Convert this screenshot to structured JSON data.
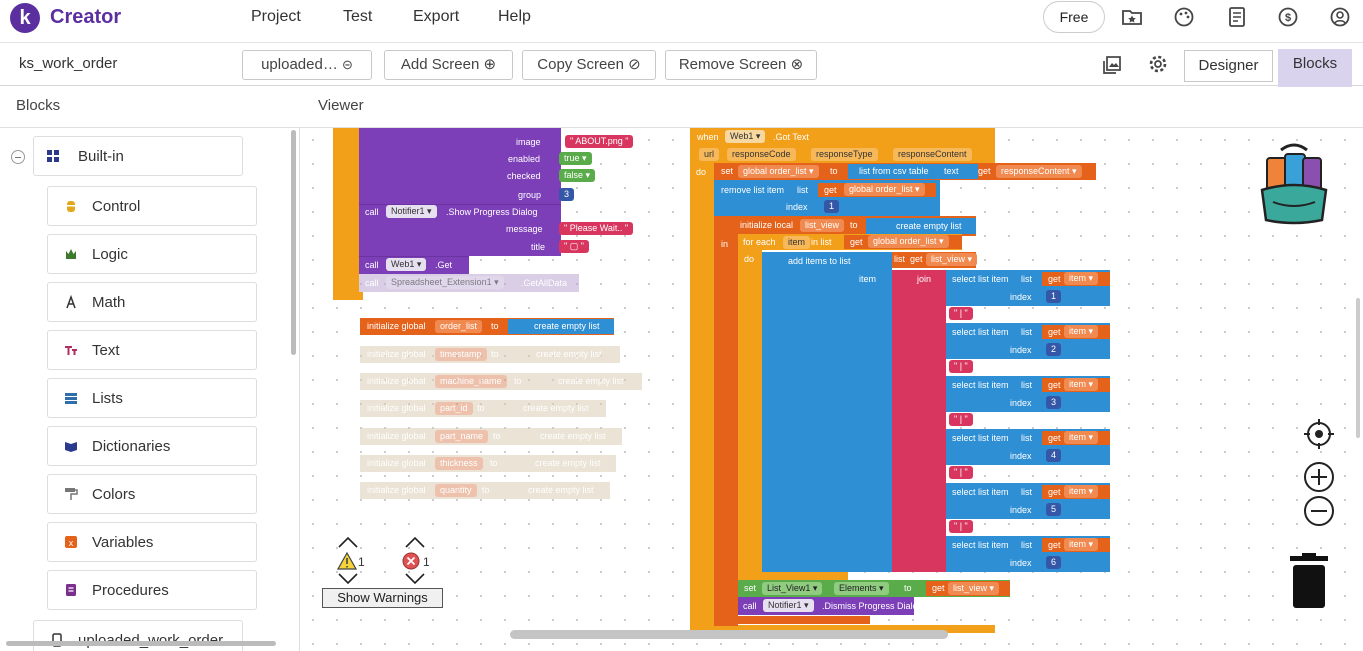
{
  "app": {
    "logo_letter": "k",
    "name": "Creator"
  },
  "menu": [
    "Project",
    "Test",
    "Export",
    "Help"
  ],
  "plan_badge": "Free",
  "project_name": "ks_work_order",
  "screen_bar": {
    "screen_select": "uploaded…",
    "add_screen": "Add Screen",
    "copy_screen": "Copy Screen",
    "remove_screen": "Remove Screen",
    "designer_tab": "Designer",
    "blocks_tab": "Blocks"
  },
  "panels": {
    "blocks_title": "Blocks",
    "viewer_title": "Viewer"
  },
  "builtin": {
    "label": "Built-in",
    "items": [
      {
        "label": "Control",
        "color": "#e1a91a"
      },
      {
        "label": "Logic",
        "color": "#3d7a2e"
      },
      {
        "label": "Math",
        "color": "#333333"
      },
      {
        "label": "Text",
        "color": "#b32d5e"
      },
      {
        "label": "Lists",
        "color": "#2f6ea9"
      },
      {
        "label": "Dictionaries",
        "color": "#2b3a8f"
      },
      {
        "label": "Colors",
        "color": "#777777"
      },
      {
        "label": "Variables",
        "color": "#e5621b"
      },
      {
        "label": "Procedures",
        "color": "#7a2e8e"
      }
    ],
    "extra_item": "uploaded_work_order"
  },
  "blocks_left": {
    "image_label": "image",
    "image_value": "ABOUT.png",
    "enabled_label": "enabled",
    "enabled_value": "true",
    "checked_label": "checked",
    "checked_value": "false",
    "group_label": "group",
    "group_value": "3",
    "call": "call",
    "notifier": "Notifier1",
    "progress_method": ".Show Progress Dialog",
    "message_label": "message",
    "message_value": "Please Wait..",
    "title_label": "title",
    "web_comp": "Web1",
    "web_method": ".Get",
    "sheet_comp": "Spreadsheet_Extension1",
    "sheet_method": ".GetAllData",
    "init_global": "initialize global",
    "to": "to",
    "create_empty_list": "create empty list",
    "globals": [
      "order_list",
      "timestamp",
      "machine_name",
      "part_id",
      "part_name",
      "thickness",
      "quantity"
    ]
  },
  "blocks_right": {
    "when": "when",
    "web": "Web1",
    "event": ".Got Text",
    "params": [
      "url",
      "responseCode",
      "responseType",
      "responseContent"
    ],
    "do": "do",
    "set": "set",
    "global_order_list": "global order_list",
    "to": "to",
    "list_from_csv": "list from csv table",
    "text": "text",
    "get": "get",
    "response_content": "responseContent",
    "remove_list_item": "remove list item",
    "list": "list",
    "index": "index",
    "index_value": "1",
    "initialize_local": "initialize local",
    "local_name": "list_view",
    "create_empty_list": "create empty list",
    "in": "in",
    "for_each": "for each",
    "item": "item",
    "in_list": "in list",
    "add_items": "add items to list",
    "join": "join",
    "select_list_item": "select list item",
    "indices": [
      "1",
      "2",
      "3",
      "4",
      "5",
      "6"
    ],
    "separator": "|",
    "set_list_view": "List_View1",
    "elements": "Elements",
    "dismiss": ".Dismiss Progress Dialog",
    "notifier": "Notifier1"
  },
  "warnings": {
    "warning_count": "1",
    "error_count": "1",
    "toggle": "Show Warnings"
  },
  "colors": {
    "brand": "#5b2fa0",
    "component": "#7c3fb8",
    "event": "#f29f1a",
    "variable": "#e5621b",
    "list": "#2f8fd4",
    "text": "#d9365f",
    "logic": "#5aab4a",
    "math": "#3457a8"
  }
}
